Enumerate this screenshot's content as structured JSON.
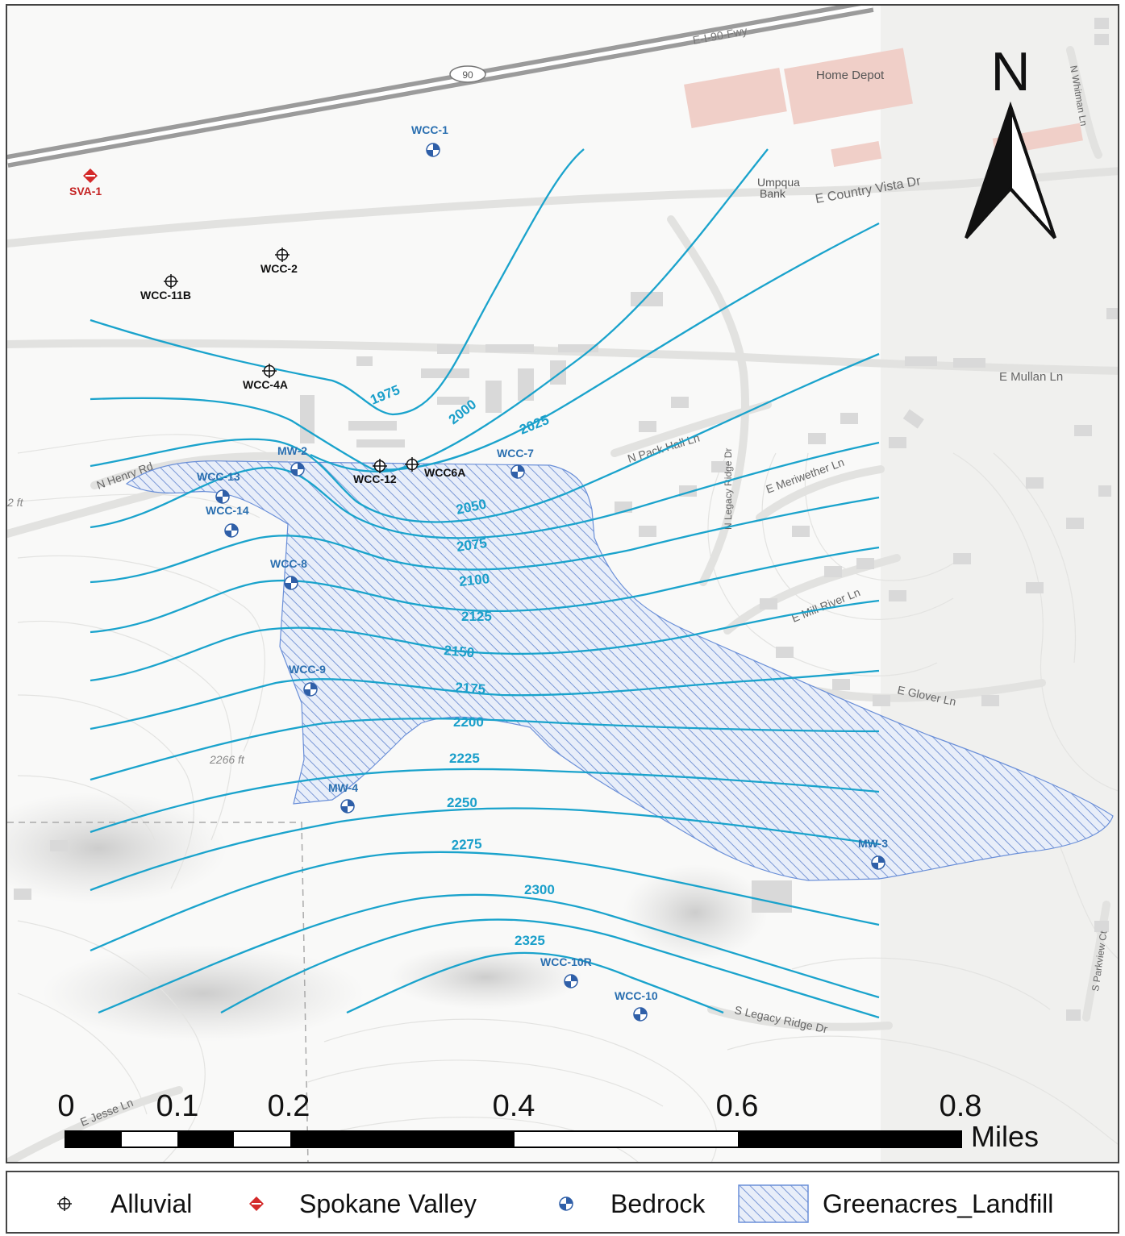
{
  "roads": {
    "freeway": "E-I-90-Fwy",
    "shield": "90",
    "country_vista": "E Country Vista Dr",
    "mullan": "E Mullan Ln",
    "pack_hall": "N Pack Hall Ln",
    "meriwether": "E Meriwether Ln",
    "legacy_ridge_n": "N Legacy Ridge Dr",
    "mill_river": "E Mill River Ln",
    "glover": "E Glover Ln",
    "henry": "N Henry Rd",
    "whitman": "N Whitman Ln",
    "legacy_ridge_s": "S Legacy Ridge Dr",
    "parkview": "S Parkview Ct",
    "jesse": "E Jesse Ln"
  },
  "landmarks": {
    "home_depot": "Home Depot",
    "umpqua_1": "Umpqua",
    "umpqua_2": "Bank"
  },
  "spot_elevations": {
    "a": "2266 ft",
    "b": "2 ft"
  },
  "north_arrow": {
    "letter": "N"
  },
  "contours": [
    "1975",
    "2000",
    "2025",
    "2050",
    "2075",
    "2100",
    "2125",
    "2150",
    "2175",
    "2200",
    "2225",
    "2250",
    "2275",
    "2300",
    "2325"
  ],
  "wells": {
    "svy_1": "SVA-1",
    "wcc_1": "WCC-1",
    "wcc_2": "WCC-2",
    "wcc_11b": "WCC-11B",
    "wcc_4a": "WCC-4A",
    "mw_2": "MW-2",
    "wcc_12": "WCC-12",
    "wcc_6a": "WCC6A",
    "wcc_7": "WCC-7",
    "wcc_13": "WCC-13",
    "wcc_14": "WCC-14",
    "wcc_8": "WCC-8",
    "wcc_9": "WCC-9",
    "mw_4": "MW-4",
    "mw_3": "MW-3",
    "wcc_10r": "WCC-10R",
    "wcc_10": "WCC-10"
  },
  "scale_bar": {
    "ticks": [
      "0",
      "0.1",
      "0.2",
      "0.4",
      "0.6",
      "0.8"
    ],
    "unit": "Miles"
  },
  "legend": [
    {
      "label": "Alluvial",
      "icon": "crosshair-well-icon"
    },
    {
      "label": "Spokane Valley",
      "icon": "red-diamond-well-icon"
    },
    {
      "label": "Bedrock",
      "icon": "blue-quartered-circle-icon"
    },
    {
      "label": "Greenacres_Landfill",
      "icon": "hatched-polygon-icon"
    }
  ],
  "colors": {
    "contour": "#1aa3cc",
    "landfill_stroke": "#6a8fd8",
    "bedrock": "#3a6fbf",
    "spokane": "#cc2222",
    "label_blue": "#2a6fb0"
  }
}
